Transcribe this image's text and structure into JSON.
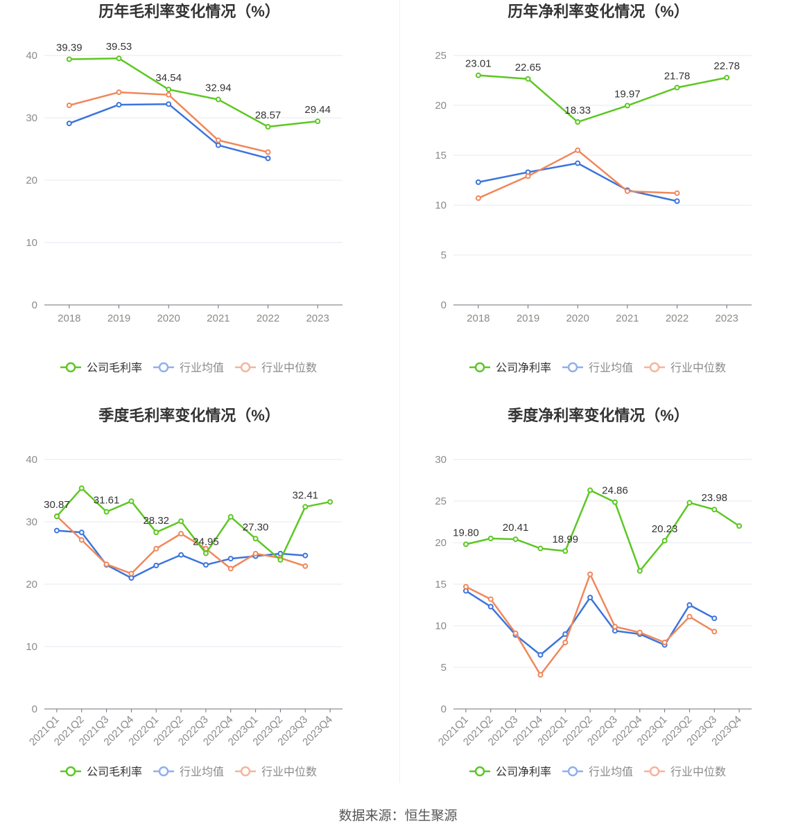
{
  "footer": "数据来源：恒生聚源",
  "colors": {
    "company": "#5cc722",
    "avg": "#3b74dc",
    "median": "#f0875b",
    "legend_avg": "#8fb0ec",
    "legend_median": "#f5b49c"
  },
  "chart_data": [
    {
      "type": "line",
      "title": "历年毛利率变化情况（%）",
      "categories": [
        "2018",
        "2019",
        "2020",
        "2021",
        "2022",
        "2023"
      ],
      "ylim": [
        0,
        40
      ],
      "yticks": [
        0,
        10,
        20,
        30,
        40
      ],
      "grid": true,
      "legend_position": "bottom",
      "series": [
        {
          "name": "公司毛利率",
          "key": "company",
          "values": [
            39.39,
            39.53,
            34.54,
            32.94,
            28.57,
            29.44
          ]
        },
        {
          "name": "行业均值",
          "key": "avg",
          "values": [
            29.1,
            32.1,
            32.2,
            25.6,
            23.5,
            null
          ]
        },
        {
          "name": "行业中位数",
          "key": "median",
          "values": [
            32.0,
            34.1,
            33.7,
            26.4,
            24.5,
            null
          ]
        }
      ],
      "labels": [
        "39.39",
        "39.53",
        "34.54",
        "32.94",
        "28.57",
        "29.44"
      ]
    },
    {
      "type": "line",
      "title": "历年净利率变化情况（%）",
      "categories": [
        "2018",
        "2019",
        "2020",
        "2021",
        "2022",
        "2023"
      ],
      "ylim": [
        0,
        25
      ],
      "yticks": [
        0,
        5,
        10,
        15,
        20,
        25
      ],
      "grid": true,
      "legend_position": "bottom",
      "series": [
        {
          "name": "公司净利率",
          "key": "company",
          "values": [
            23.01,
            22.65,
            18.33,
            19.97,
            21.78,
            22.78
          ]
        },
        {
          "name": "行业均值",
          "key": "avg",
          "values": [
            12.3,
            13.3,
            14.2,
            11.5,
            10.4,
            null
          ]
        },
        {
          "name": "行业中位数",
          "key": "median",
          "values": [
            10.7,
            12.9,
            15.5,
            11.4,
            11.2,
            null
          ]
        }
      ],
      "labels": [
        "23.01",
        "22.65",
        "18.33",
        "19.97",
        "21.78",
        "22.78"
      ]
    },
    {
      "type": "line",
      "title": "季度毛利率变化情况（%）",
      "categories": [
        "2021Q1",
        "2021Q2",
        "2021Q3",
        "2021Q4",
        "2022Q1",
        "2022Q2",
        "2022Q3",
        "2022Q4",
        "2023Q1",
        "2023Q2",
        "2023Q3",
        "2023Q4"
      ],
      "ylim": [
        0,
        40
      ],
      "yticks": [
        0,
        10,
        20,
        30,
        40
      ],
      "grid": true,
      "legend_position": "bottom",
      "series": [
        {
          "name": "公司毛利率",
          "key": "company",
          "values": [
            30.87,
            35.4,
            31.61,
            33.3,
            28.32,
            30.1,
            24.95,
            30.8,
            27.3,
            23.9,
            32.41,
            33.2
          ]
        },
        {
          "name": "行业均值",
          "key": "avg",
          "values": [
            28.6,
            28.3,
            23.1,
            21.0,
            23.0,
            24.7,
            23.1,
            24.1,
            24.5,
            24.9,
            24.6,
            null
          ]
        },
        {
          "name": "行业中位数",
          "key": "median",
          "values": [
            30.9,
            27.1,
            23.2,
            21.7,
            25.7,
            28.1,
            25.7,
            22.5,
            24.9,
            24.2,
            22.9,
            null
          ]
        }
      ],
      "labels": [
        "30.87",
        "",
        "31.61",
        "",
        "28.32",
        "",
        "24.95",
        "",
        "27.30",
        "",
        "32.41",
        ""
      ]
    },
    {
      "type": "line",
      "title": "季度净利率变化情况（%）",
      "categories": [
        "2021Q1",
        "2021Q2",
        "2021Q3",
        "2021Q4",
        "2022Q1",
        "2022Q2",
        "2022Q3",
        "2022Q4",
        "2023Q1",
        "2023Q2",
        "2023Q3",
        "2023Q4"
      ],
      "ylim": [
        0,
        30
      ],
      "yticks": [
        0,
        5,
        10,
        15,
        20,
        25,
        30
      ],
      "grid": true,
      "legend_position": "bottom",
      "series": [
        {
          "name": "公司净利率",
          "key": "company",
          "values": [
            19.8,
            20.5,
            20.41,
            19.3,
            18.99,
            26.3,
            24.86,
            16.6,
            20.23,
            24.8,
            23.98,
            22.0
          ]
        },
        {
          "name": "行业均值",
          "key": "avg",
          "values": [
            14.2,
            12.3,
            8.9,
            6.5,
            9.0,
            13.4,
            9.4,
            9.0,
            7.7,
            12.5,
            10.9,
            null
          ]
        },
        {
          "name": "行业中位数",
          "key": "median",
          "values": [
            14.7,
            13.2,
            9.1,
            4.1,
            8.0,
            16.2,
            9.9,
            9.2,
            8.0,
            11.1,
            9.3,
            null
          ]
        }
      ],
      "labels": [
        "19.80",
        "",
        "20.41",
        "",
        "18.99",
        "",
        "24.86",
        "",
        "20.23",
        "",
        "23.98",
        ""
      ]
    }
  ]
}
